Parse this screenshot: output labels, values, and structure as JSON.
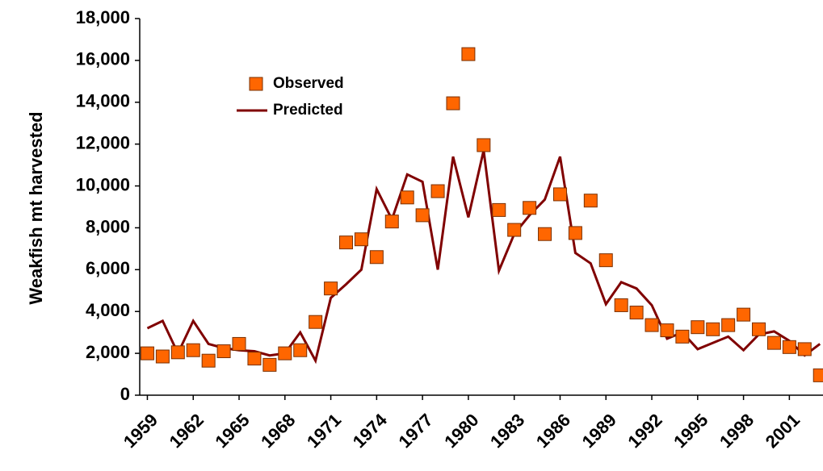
{
  "chart_data": {
    "type": "line-scatter",
    "y_label": "Weakfish mt harvested",
    "x": [
      1959,
      1960,
      1961,
      1962,
      1963,
      1964,
      1965,
      1966,
      1967,
      1968,
      1969,
      1970,
      1971,
      1972,
      1973,
      1974,
      1975,
      1976,
      1977,
      1978,
      1979,
      1980,
      1981,
      1982,
      1983,
      1984,
      1985,
      1986,
      1987,
      1988,
      1989,
      1990,
      1991,
      1992,
      1993,
      1994,
      1995,
      1996,
      1997,
      1998,
      1999,
      2000,
      2001,
      2002,
      2003
    ],
    "series": [
      {
        "name": "Observed",
        "mode": "markers",
        "color": "#ff6600",
        "values": [
          2000,
          1850,
          2050,
          2150,
          1650,
          2100,
          2450,
          1750,
          1450,
          2000,
          2150,
          3500,
          5100,
          7300,
          7450,
          6600,
          8300,
          9450,
          8600,
          9750,
          13950,
          16300,
          11950,
          8850,
          7900,
          8950,
          7700,
          9600,
          7750,
          9300,
          6450,
          4300,
          3950,
          3350,
          3100,
          2800,
          3250,
          3150,
          3350,
          3850,
          3150,
          2500,
          2300,
          2200,
          950
        ]
      },
      {
        "name": "Predicted",
        "mode": "line",
        "color": "#800000",
        "values": [
          3200,
          3550,
          2000,
          3550,
          2450,
          2250,
          2150,
          2100,
          1900,
          2000,
          3000,
          1650,
          4650,
          5300,
          6000,
          9850,
          8400,
          10550,
          10200,
          6000,
          11400,
          8500,
          11700,
          5950,
          7700,
          8600,
          9350,
          11400,
          6800,
          6300,
          4350,
          5400,
          5100,
          4300,
          2700,
          3000,
          2200,
          2500,
          2800,
          2150,
          2900,
          3050,
          2600,
          1900,
          2450
        ]
      }
    ],
    "xlim": [
      1958.5,
      2003.2
    ],
    "xticks": [
      1959,
      1962,
      1965,
      1968,
      1971,
      1974,
      1977,
      1980,
      1983,
      1986,
      1989,
      1992,
      1995,
      1998,
      2001
    ],
    "ylim": [
      0,
      18000
    ],
    "yticks": [
      0,
      {
        "value": 2000,
        "label": "2,000"
      },
      {
        "value": 4000,
        "label": "4,000"
      },
      {
        "value": 6000,
        "label": "6,000"
      },
      {
        "value": 8000,
        "label": "8,000"
      },
      {
        "value": 10000,
        "label": "10,000"
      },
      {
        "value": 12000,
        "label": "12,000"
      },
      {
        "value": 14000,
        "label": "14,000"
      },
      {
        "value": 16000,
        "label": "16,000"
      },
      {
        "value": 18000,
        "label": "18,000"
      }
    ]
  }
}
